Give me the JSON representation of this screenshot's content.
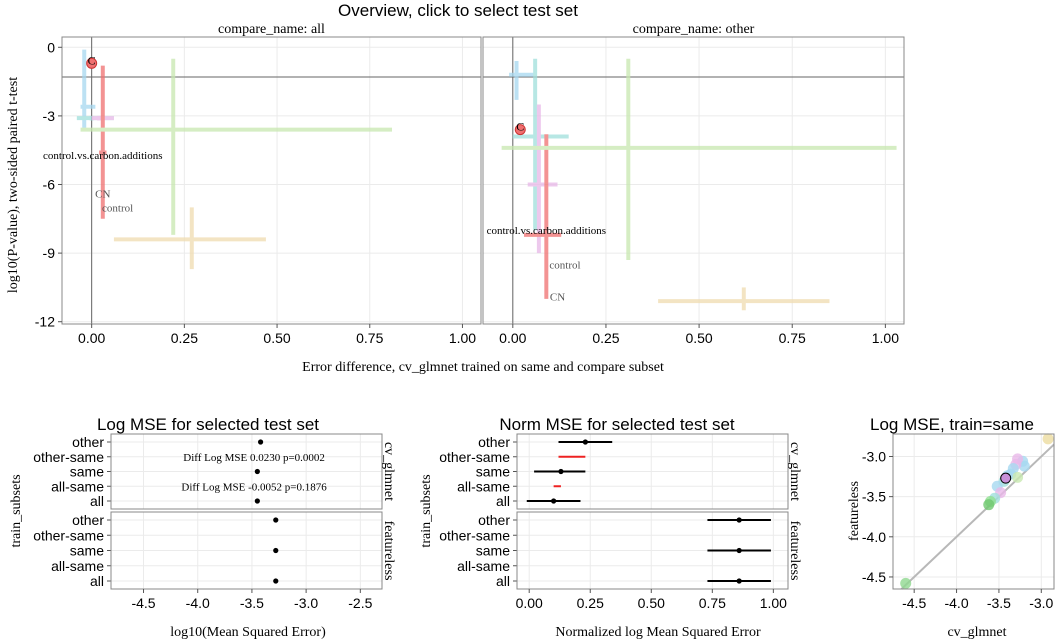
{
  "chart_data": [
    {
      "type": "scatter",
      "title": "Overview, click to select test set",
      "xlabel": "Error difference, cv_glmnet trained on same and compare subset",
      "ylabel": "log10(P-value), two-sided paired t-test",
      "xticks": [
        "0.00",
        "0.25",
        "0.50",
        "0.75",
        "1.00"
      ],
      "yticks": [
        "0",
        "-3",
        "-6",
        "-9",
        "-12"
      ],
      "xlim": [
        -0.08,
        1.05
      ],
      "ylim": [
        -12.1,
        0.45
      ],
      "hline_y": -1.3,
      "vline_x": 0,
      "facets": [
        {
          "strip": "compare_name: all",
          "selected": {
            "x": 0.0,
            "y": -0.7,
            "label": "C"
          },
          "crosses": [
            {
              "color": "#a6d8f0",
              "x": [
                -0.03,
                0.01
              ],
              "y": [
                -3.6,
                -0.1
              ],
              "cx": -0.02,
              "cy": -2.6
            },
            {
              "color": "#a0e0dc",
              "x": [
                -0.04,
                0.06
              ],
              "y": [
                -3.2,
                -3.0
              ],
              "cx": 0.0,
              "cy": -3.1
            },
            {
              "color": "#e8b8e8",
              "x": [
                0.0,
                0.06
              ],
              "y": [
                -3.2,
                -3.0
              ],
              "cx": 0.02,
              "cy": -3.1
            },
            {
              "color": "#f07070",
              "x": [
                0.02,
                0.04
              ],
              "y": [
                -7.5,
                -0.8
              ],
              "cx": 0.03,
              "cy": -4.6
            },
            {
              "color": "#c8e8b0",
              "x": [
                -0.03,
                0.81
              ],
              "y": [
                -8.2,
                -0.5
              ],
              "cx": 0.22,
              "cy": -3.6
            },
            {
              "color": "#f0dcb0",
              "x": [
                0.06,
                0.47
              ],
              "y": [
                -9.7,
                -7.0
              ],
              "cx": 0.27,
              "cy": -8.4
            }
          ],
          "labels": [
            {
              "text": "control.vs.carbon.additions",
              "x": 0.03,
              "y": -4.7
            },
            {
              "text": "CN",
              "x": 0.03,
              "y": -6.4
            },
            {
              "text": "control",
              "x": 0.07,
              "y": -7.0
            }
          ]
        },
        {
          "strip": "compare_name: other",
          "selected": {
            "x": 0.02,
            "y": -3.6,
            "label": "C"
          },
          "crosses": [
            {
              "color": "#a6d8f0",
              "x": [
                -0.01,
                0.06
              ],
              "y": [
                -2.3,
                -0.6
              ],
              "cx": 0.01,
              "cy": -1.2
            },
            {
              "color": "#a0e0dc",
              "x": [
                0.0,
                0.15
              ],
              "y": [
                -8.0,
                -0.5
              ],
              "cx": 0.06,
              "cy": -3.9
            },
            {
              "color": "#e8b8e8",
              "x": [
                0.04,
                0.12
              ],
              "y": [
                -9.0,
                -2.5
              ],
              "cx": 0.07,
              "cy": -6.0
            },
            {
              "color": "#f07070",
              "x": [
                0.03,
                0.13
              ],
              "y": [
                -11.0,
                -3.8
              ],
              "cx": 0.09,
              "cy": -8.2
            },
            {
              "color": "#c8e8b0",
              "x": [
                -0.03,
                1.03
              ],
              "y": [
                -9.3,
                -0.5
              ],
              "cx": 0.31,
              "cy": -4.4
            },
            {
              "color": "#f0dcb0",
              "x": [
                0.39,
                0.85
              ],
              "y": [
                -11.5,
                -10.5
              ],
              "cx": 0.62,
              "cy": -11.1
            }
          ],
          "labels": [
            {
              "text": "control.vs.carbon.additions",
              "x": 0.09,
              "y": -8.0
            },
            {
              "text": "control",
              "x": 0.14,
              "y": -9.5
            },
            {
              "text": "CN",
              "x": 0.12,
              "y": -10.9
            }
          ]
        }
      ]
    },
    {
      "type": "scatter",
      "title": "Log MSE for selected test set",
      "xlabel": "log10(Mean Squared Error)",
      "ylabel": "train_subsets",
      "xticks": [
        "-4.5",
        "-4.0",
        "-3.5",
        "-3.0",
        "-2.5"
      ],
      "xlim": [
        -4.8,
        -2.3
      ],
      "categories": [
        "other",
        "other-same",
        "same",
        "all-same",
        "all"
      ],
      "panels": [
        {
          "strip": "cv_glmnet",
          "points": [
            {
              "category": "other",
              "value": -3.42,
              "low": -3.44,
              "high": -3.4
            },
            {
              "category": "same",
              "value": -3.45,
              "low": -3.47,
              "high": -3.43
            },
            {
              "category": "all",
              "value": -3.45,
              "low": -3.47,
              "high": -3.43
            }
          ],
          "annotations": [
            {
              "text": "Diff Log MSE 0.0230 p=0.0002",
              "x": -3.48,
              "category": "other-same"
            },
            {
              "text": "Diff Log MSE -0.0052 p=0.1876",
              "x": -3.48,
              "category": "all-same"
            }
          ]
        },
        {
          "strip": "featureless",
          "points": [
            {
              "category": "other",
              "value": -3.28,
              "low": -3.3,
              "high": -3.26
            },
            {
              "category": "same",
              "value": -3.28,
              "low": -3.3,
              "high": -3.26
            },
            {
              "category": "all",
              "value": -3.28,
              "low": -3.3,
              "high": -3.26
            }
          ],
          "annotations": []
        }
      ]
    },
    {
      "type": "scatter",
      "title": "Norm MSE for selected test set",
      "xlabel": "Normalized log Mean Squared Error",
      "ylabel": "train_subsets",
      "xticks": [
        "0.00",
        "0.25",
        "0.50",
        "0.75",
        "1.00"
      ],
      "xlim": [
        -0.05,
        1.06
      ],
      "categories": [
        "other",
        "other-same",
        "same",
        "all-same",
        "all"
      ],
      "panels": [
        {
          "strip": "cv_glmnet",
          "points": [
            {
              "category": "other",
              "value": 0.23,
              "low": 0.12,
              "high": 0.34
            },
            {
              "category": "same",
              "value": 0.13,
              "low": 0.02,
              "high": 0.23
            },
            {
              "category": "all",
              "value": 0.1,
              "low": -0.01,
              "high": 0.21
            }
          ],
          "diffs": [
            {
              "category": "other-same",
              "low": 0.12,
              "high": 0.23
            },
            {
              "category": "all-same",
              "low": 0.1,
              "high": 0.13
            }
          ]
        },
        {
          "strip": "featureless",
          "points": [
            {
              "category": "other",
              "value": 0.86,
              "low": 0.73,
              "high": 0.99
            },
            {
              "category": "same",
              "value": 0.86,
              "low": 0.73,
              "high": 0.99
            },
            {
              "category": "all",
              "value": 0.86,
              "low": 0.73,
              "high": 0.99
            }
          ],
          "diffs": []
        }
      ]
    },
    {
      "type": "scatter",
      "title": "Log MSE, train=same",
      "xlabel": "cv_glmnet",
      "ylabel": "featureless",
      "xticks": [
        "-4.5",
        "-4.0",
        "-3.5",
        "-3.0"
      ],
      "yticks": [
        "-3.0",
        "-3.5",
        "-4.0",
        "-4.5"
      ],
      "xlim": [
        -4.75,
        -2.85
      ],
      "ylim": [
        -4.65,
        -2.72
      ],
      "diagonal": true,
      "points": [
        {
          "x": -2.92,
          "y": -2.78,
          "color": "#ecdca0"
        },
        {
          "x": -3.22,
          "y": -3.06,
          "color": "#a6d8f0"
        },
        {
          "x": -3.2,
          "y": -3.12,
          "color": "#a6d8f0"
        },
        {
          "x": -3.28,
          "y": -3.03,
          "color": "#e8b8e8"
        },
        {
          "x": -3.3,
          "y": -3.1,
          "color": "#e8b8e8"
        },
        {
          "x": -3.33,
          "y": -3.15,
          "color": "#a6d8f0"
        },
        {
          "x": -3.36,
          "y": -3.22,
          "color": "#a6d8f0"
        },
        {
          "x": -3.28,
          "y": -3.26,
          "color": "#c8e8b0"
        },
        {
          "x": -3.4,
          "y": -3.24,
          "color": "#a6d8f0"
        },
        {
          "x": -3.44,
          "y": -3.31,
          "color": "#a0e0dc"
        },
        {
          "x": -3.52,
          "y": -3.37,
          "color": "#a6d8f0"
        },
        {
          "x": -3.48,
          "y": -3.45,
          "color": "#e8b8e8"
        },
        {
          "x": -3.55,
          "y": -3.52,
          "color": "#a0e0dc"
        },
        {
          "x": -3.6,
          "y": -3.56,
          "color": "#90e090"
        },
        {
          "x": -3.62,
          "y": -3.6,
          "color": "#70c870"
        },
        {
          "x": -4.6,
          "y": -4.58,
          "color": "#90d890"
        }
      ],
      "selected": {
        "x": -3.42,
        "y": -3.27,
        "color": "#c890d8"
      }
    }
  ]
}
